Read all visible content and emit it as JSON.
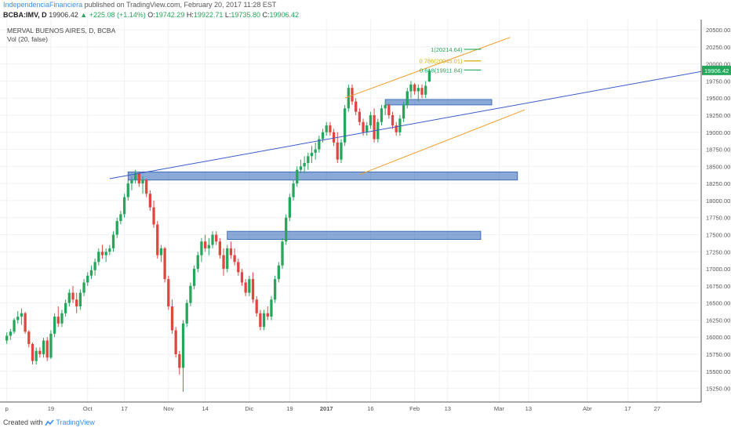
{
  "header": {
    "author": "IndependenciaFinanciera",
    "published_text": "published on TradingView.com, February 20, 2017 11:28 EST"
  },
  "quote": {
    "symbol": "BCBA:IMV, D",
    "last": "19906.42",
    "change": "+225.08 (+1.14%)",
    "o_label": "O:",
    "o": "19742.29",
    "h_label": "H:",
    "h": "19922.71",
    "l_label": "L:",
    "l": "19735.80",
    "c_label": "C:",
    "c": "19906.42"
  },
  "footer": {
    "created_with": "Created with",
    "brand": "TradingView"
  },
  "chart_data": {
    "type": "candlestick",
    "title": "MERVAL BUENOS AIRES, D, BCBA",
    "subtitle": "Vol (20, false)",
    "ylim": [
      15050,
      20650
    ],
    "y_ticks": [
      15250,
      15500,
      15750,
      16000,
      16250,
      16500,
      16750,
      17000,
      17250,
      17500,
      17750,
      18000,
      18250,
      18500,
      18750,
      19000,
      19250,
      19500,
      19750,
      20000,
      20250,
      20500
    ],
    "y_tick_labels": [
      "15250.00",
      "15500.00",
      "15750.00",
      "16000.00",
      "16250.00",
      "16500.00",
      "16750.00",
      "17000.00",
      "17250.00",
      "17500.00",
      "17750.00",
      "18000.00",
      "18250.00",
      "18500.00",
      "18750.00",
      "19000.00",
      "19250.00",
      "19500.00",
      "19750.00",
      "20000.00",
      "20250.00",
      "20500.00"
    ],
    "x_range": [
      0,
      190
    ],
    "x_ticks": [
      {
        "label": "p",
        "idx": 1
      },
      {
        "label": "19",
        "idx": 13
      },
      {
        "label": "Oct",
        "idx": 23
      },
      {
        "label": "17",
        "idx": 33
      },
      {
        "label": "Nov",
        "idx": 45
      },
      {
        "label": "14",
        "idx": 55
      },
      {
        "label": "Dic",
        "idx": 67
      },
      {
        "label": "19",
        "idx": 78
      },
      {
        "label": "2017",
        "idx": 88
      },
      {
        "label": "16",
        "idx": 100
      },
      {
        "label": "Feb",
        "idx": 112
      },
      {
        "label": "13",
        "idx": 121
      },
      {
        "label": "Mar",
        "idx": 135
      },
      {
        "label": "13",
        "idx": 143
      },
      {
        "label": "Abr",
        "idx": 159
      },
      {
        "label": "17",
        "idx": 170
      },
      {
        "label": "27",
        "idx": 178
      }
    ],
    "candles": [
      [
        15950,
        16070,
        15900,
        16020
      ],
      [
        16020,
        16120,
        15960,
        16080
      ],
      [
        16080,
        16280,
        16050,
        16250
      ],
      [
        16250,
        16380,
        16200,
        16300
      ],
      [
        16300,
        16420,
        16180,
        16350
      ],
      [
        16350,
        16370,
        16050,
        16080
      ],
      [
        16080,
        16100,
        15850,
        15900
      ],
      [
        15900,
        15920,
        15600,
        15650
      ],
      [
        15650,
        15850,
        15600,
        15800
      ],
      [
        15800,
        15850,
        15700,
        15750
      ],
      [
        15750,
        15990,
        15700,
        15950
      ],
      [
        15950,
        16000,
        15650,
        15700
      ],
      [
        15700,
        16100,
        15680,
        16050
      ],
      [
        16050,
        16350,
        16000,
        16300
      ],
      [
        16300,
        16450,
        16150,
        16200
      ],
      [
        16200,
        16400,
        16150,
        16350
      ],
      [
        16350,
        16550,
        16300,
        16500
      ],
      [
        16500,
        16700,
        16450,
        16650
      ],
      [
        16650,
        16750,
        16500,
        16550
      ],
      [
        16550,
        16650,
        16350,
        16450
      ],
      [
        16450,
        16700,
        16400,
        16650
      ],
      [
        16650,
        16850,
        16600,
        16800
      ],
      [
        16800,
        16950,
        16750,
        16900
      ],
      [
        16900,
        17050,
        16850,
        16980
      ],
      [
        16980,
        17150,
        16900,
        17100
      ],
      [
        17100,
        17300,
        17050,
        17250
      ],
      [
        17250,
        17350,
        17150,
        17200
      ],
      [
        17200,
        17300,
        17100,
        17250
      ],
      [
        17250,
        17350,
        17200,
        17300
      ],
      [
        17300,
        17550,
        17250,
        17500
      ],
      [
        17500,
        17750,
        17450,
        17700
      ],
      [
        17700,
        17850,
        17650,
        17800
      ],
      [
        17800,
        18100,
        17750,
        18050
      ],
      [
        18050,
        18300,
        18000,
        18250
      ],
      [
        18250,
        18350,
        18150,
        18300
      ],
      [
        18300,
        18450,
        18250,
        18400
      ],
      [
        18400,
        18420,
        18200,
        18250
      ],
      [
        18250,
        18350,
        18100,
        18300
      ],
      [
        18300,
        18320,
        18050,
        18100
      ],
      [
        18100,
        18150,
        17850,
        17900
      ],
      [
        17900,
        18000,
        17600,
        17650
      ],
      [
        17650,
        17700,
        17150,
        17200
      ],
      [
        17200,
        17350,
        17100,
        17300
      ],
      [
        17300,
        17320,
        16800,
        16850
      ],
      [
        16850,
        16900,
        16400,
        16450
      ],
      [
        16450,
        16550,
        16050,
        16100
      ],
      [
        16100,
        16150,
        15700,
        15750
      ],
      [
        15750,
        15800,
        15450,
        15550
      ],
      [
        15550,
        16250,
        15200,
        16200
      ],
      [
        16200,
        16550,
        16150,
        16500
      ],
      [
        16500,
        16800,
        16450,
        16750
      ],
      [
        16750,
        17050,
        16700,
        17000
      ],
      [
        17000,
        17250,
        16950,
        17200
      ],
      [
        17200,
        17450,
        17100,
        17400
      ],
      [
        17400,
        17500,
        17250,
        17300
      ],
      [
        17300,
        17450,
        17200,
        17350
      ],
      [
        17350,
        17550,
        17300,
        17500
      ],
      [
        17500,
        17550,
        17350,
        17400
      ],
      [
        17400,
        17450,
        17150,
        17200
      ],
      [
        17200,
        17300,
        16900,
        17000
      ],
      [
        17000,
        17350,
        16950,
        17300
      ],
      [
        17300,
        17400,
        17150,
        17200
      ],
      [
        17200,
        17300,
        17050,
        17100
      ],
      [
        17100,
        17150,
        16900,
        16950
      ],
      [
        16950,
        17000,
        16750,
        16800
      ],
      [
        16800,
        16850,
        16600,
        16650
      ],
      [
        16650,
        16900,
        16600,
        16850
      ],
      [
        16850,
        16950,
        16500,
        16550
      ],
      [
        16550,
        16600,
        16300,
        16350
      ],
      [
        16350,
        16400,
        16100,
        16150
      ],
      [
        16150,
        16400,
        16100,
        16350
      ],
      [
        16350,
        16450,
        16250,
        16300
      ],
      [
        16300,
        16600,
        16250,
        16550
      ],
      [
        16550,
        16900,
        16500,
        16850
      ],
      [
        16850,
        17100,
        16800,
        17050
      ],
      [
        17050,
        17450,
        17000,
        17400
      ],
      [
        17400,
        17800,
        17350,
        17750
      ],
      [
        17750,
        18100,
        17700,
        18050
      ],
      [
        18050,
        18300,
        18000,
        18250
      ],
      [
        18250,
        18500,
        18200,
        18450
      ],
      [
        18450,
        18600,
        18400,
        18500
      ],
      [
        18500,
        18650,
        18400,
        18550
      ],
      [
        18550,
        18700,
        18450,
        18650
      ],
      [
        18650,
        18800,
        18550,
        18700
      ],
      [
        18700,
        18850,
        18600,
        18750
      ],
      [
        18750,
        18950,
        18700,
        18900
      ],
      [
        18900,
        19050,
        18850,
        19000
      ],
      [
        19000,
        19150,
        18950,
        19100
      ],
      [
        19100,
        19150,
        18950,
        19000
      ],
      [
        19000,
        19050,
        18800,
        18850
      ],
      [
        18850,
        19000,
        18550,
        18600
      ],
      [
        18600,
        18900,
        18550,
        18850
      ],
      [
        18850,
        19400,
        18800,
        19350
      ],
      [
        19350,
        19700,
        19300,
        19650
      ],
      [
        19650,
        19700,
        19400,
        19450
      ],
      [
        19450,
        19500,
        19250,
        19300
      ],
      [
        19300,
        19350,
        19100,
        19150
      ],
      [
        19150,
        19200,
        18950,
        19000
      ],
      [
        19000,
        19150,
        18950,
        19100
      ],
      [
        19100,
        19300,
        19050,
        19250
      ],
      [
        19250,
        19350,
        18850,
        18900
      ],
      [
        18900,
        19200,
        18850,
        19150
      ],
      [
        19150,
        19400,
        19100,
        19350
      ],
      [
        19350,
        19450,
        19250,
        19400
      ],
      [
        19400,
        19420,
        19200,
        19250
      ],
      [
        19250,
        19300,
        19050,
        19100
      ],
      [
        19100,
        19150,
        18950,
        19000
      ],
      [
        19000,
        19250,
        18950,
        19200
      ],
      [
        19200,
        19450,
        19150,
        19400
      ],
      [
        19400,
        19650,
        19350,
        19600
      ],
      [
        19600,
        19750,
        19500,
        19700
      ],
      [
        19700,
        19720,
        19550,
        19600
      ],
      [
        19600,
        19700,
        19450,
        19650
      ],
      [
        19650,
        19700,
        19500,
        19550
      ],
      [
        19550,
        19750,
        19500,
        19680
      ],
      [
        19742,
        19923,
        19736,
        19906
      ]
    ],
    "levels": [
      {
        "name": "1(20214.64)",
        "value": 20214.64,
        "color": "#26a65b",
        "x0": 115,
        "x1": 125
      },
      {
        "name": "0.786(20045.01)",
        "value": 20045.01,
        "color": "#d4b000",
        "x0": 115,
        "x1": 125
      },
      {
        "name": "0.618(19911.84)",
        "value": 19911.84,
        "color": "#26a65b",
        "x0": 115,
        "x1": 125
      }
    ],
    "zones": [
      {
        "x0": 34,
        "x1": 140,
        "y0": 18300,
        "y1": 18420
      },
      {
        "x0": 61,
        "x1": 130,
        "y0": 17430,
        "y1": 17550
      },
      {
        "x0": 104,
        "x1": 133,
        "y0": 19400,
        "y1": 19480
      }
    ],
    "lines": [
      {
        "x0": 29,
        "y0": 18320,
        "x1": 190,
        "y1": 19890,
        "color": "#3a5bc7"
      },
      {
        "x0": 93,
        "y0": 19500,
        "x1": 138,
        "y1": 20390,
        "color": "#f0a030"
      },
      {
        "x0": 97,
        "y0": 18380,
        "x1": 142,
        "y1": 19330,
        "color": "#f0a030"
      }
    ],
    "colors": {
      "up": "#26a65b",
      "down": "#e0463f",
      "grid": "#eef1f5",
      "last_price_bg": "#26a65b"
    }
  }
}
